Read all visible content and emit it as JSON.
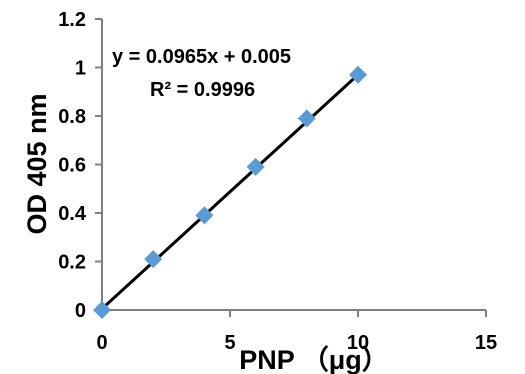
{
  "chart_data": {
    "type": "scatter",
    "title": "",
    "xlabel": "PNP （μg）",
    "ylabel": "OD 405 nm",
    "xlim": [
      0,
      15
    ],
    "ylim": [
      0,
      1.2
    ],
    "x_ticks": [
      "0",
      "5",
      "10",
      "15"
    ],
    "y_ticks": [
      "0",
      "0.2",
      "0.4",
      "0.6",
      "0.8",
      "1",
      "1.2"
    ],
    "grid": false,
    "legend": "none",
    "series": [
      {
        "marker": "diamond",
        "color": "#5B9BD5",
        "x": [
          0,
          2,
          4,
          6,
          8,
          10
        ],
        "y": [
          0.0,
          0.21,
          0.39,
          0.59,
          0.79,
          0.97
        ]
      }
    ],
    "trendline": {
      "slope": 0.0965,
      "intercept": 0.005,
      "x_range": [
        0,
        10
      ],
      "color": "#000000"
    },
    "annotations": {
      "equation": "y = 0.0965x + 0.005",
      "r_squared": "R² = 0.9996"
    }
  }
}
